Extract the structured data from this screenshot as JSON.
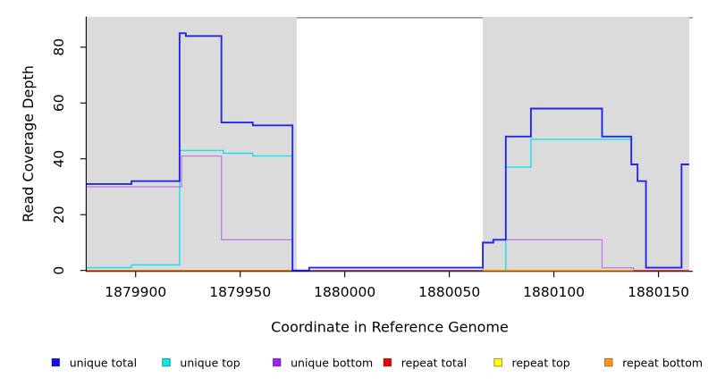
{
  "figure": {
    "background": "#FFFFFF",
    "plot_bg_band_color": "#DBDBDB",
    "box_line_color": "#828282"
  },
  "chart_data": {
    "type": "line",
    "subtype": "step-post-coverage",
    "title": "",
    "xlabel": "Coordinate in Reference Genome",
    "ylabel": "Read Coverage Depth",
    "xlim": [
      1879876.6,
      1880166.4
    ],
    "ylim": [
      0,
      90.5
    ],
    "x_ticks": [
      1879900,
      1879950,
      1880000,
      1880050,
      1880100,
      1880150
    ],
    "y_ticks": [
      0,
      20,
      40,
      60,
      80
    ],
    "grid": "off",
    "legend_position": "bottom",
    "background_bands": [
      {
        "from": 1879876.6,
        "to": 1879977,
        "color": "#DBDBDB"
      },
      {
        "from": 1880066,
        "to": 1880164.7,
        "color": "#DBDBDB"
      }
    ],
    "series": [
      {
        "key": "repeat-top",
        "label": "repeat top",
        "color": "#FFFF00",
        "line_width": 1.2,
        "opacity": 1,
        "points": [
          [
            1879876.6,
            0
          ]
        ],
        "end": 1880164.7
      },
      {
        "key": "unique-top",
        "label": "unique top",
        "color": "#00E0EE",
        "line_width": 1.4,
        "opacity": 0.9,
        "points": [
          [
            1879876.6,
            1
          ],
          [
            1879898,
            2
          ],
          [
            1879921,
            43
          ],
          [
            1879942,
            42
          ],
          [
            1879956,
            41
          ],
          [
            1879975,
            0
          ],
          [
            1880077,
            37
          ],
          [
            1880089,
            47
          ]
        ],
        "end": 1880137
      },
      {
        "key": "unique-bottom",
        "label": "unique bottom",
        "color": "#A020F0",
        "line_width": 1.3,
        "opacity": 0.5,
        "points": [
          [
            1879876.6,
            30
          ],
          [
            1879922,
            41
          ],
          [
            1879941,
            11
          ],
          [
            1879975,
            0
          ],
          [
            1880066,
            10
          ],
          [
            1880071,
            11
          ],
          [
            1880123,
            1
          ],
          [
            1880138,
            0
          ]
        ],
        "end": 1880164.7
      },
      {
        "key": "repeat-total",
        "label": "repeat total",
        "color": "#EE0000",
        "line_width": 1.2,
        "opacity": 0.62,
        "points": [
          [
            1879876.6,
            0
          ]
        ],
        "end": 1880164.7
      },
      {
        "key": "repeat-bottom",
        "label": "repeat bottom",
        "color": "#FF9E15",
        "line_width": 1.6,
        "opacity": 1,
        "points": [
          [
            1879876.6,
            0
          ],
          [
            1879977,
            null
          ],
          [
            1880066,
            0
          ]
        ],
        "end": 1880138
      },
      {
        "key": "unique-total",
        "label": "unique total",
        "color": "#1C1CEC",
        "line_width": 1.9,
        "opacity": 0.95,
        "points": [
          [
            1879876.6,
            31
          ],
          [
            1879898,
            32
          ],
          [
            1879921,
            85
          ],
          [
            1879924,
            84
          ],
          [
            1879941,
            53
          ],
          [
            1879956,
            52
          ],
          [
            1879975,
            0
          ],
          [
            1879983,
            1
          ],
          [
            1880066,
            10
          ],
          [
            1880071,
            11
          ],
          [
            1880077,
            48
          ],
          [
            1880089,
            58
          ],
          [
            1880123,
            48
          ],
          [
            1880137,
            38
          ],
          [
            1880140,
            32
          ],
          [
            1880144,
            1
          ],
          [
            1880161,
            38
          ]
        ],
        "end": 1880164.7
      }
    ]
  },
  "legend": {
    "items": [
      {
        "key": "unique-total",
        "label": "unique total",
        "color": "#0F0FEE"
      },
      {
        "key": "unique-top",
        "label": "unique top",
        "color": "#00E8F0"
      },
      {
        "key": "unique-bottom",
        "label": "unique bottom",
        "color": "#A020F0"
      },
      {
        "key": "repeat-total",
        "label": "repeat total",
        "color": "#EE0000"
      },
      {
        "key": "repeat-top",
        "label": "repeat top",
        "color": "#FFFF00"
      },
      {
        "key": "repeat-bottom",
        "label": "repeat bottom",
        "color": "#FF9912"
      }
    ]
  }
}
